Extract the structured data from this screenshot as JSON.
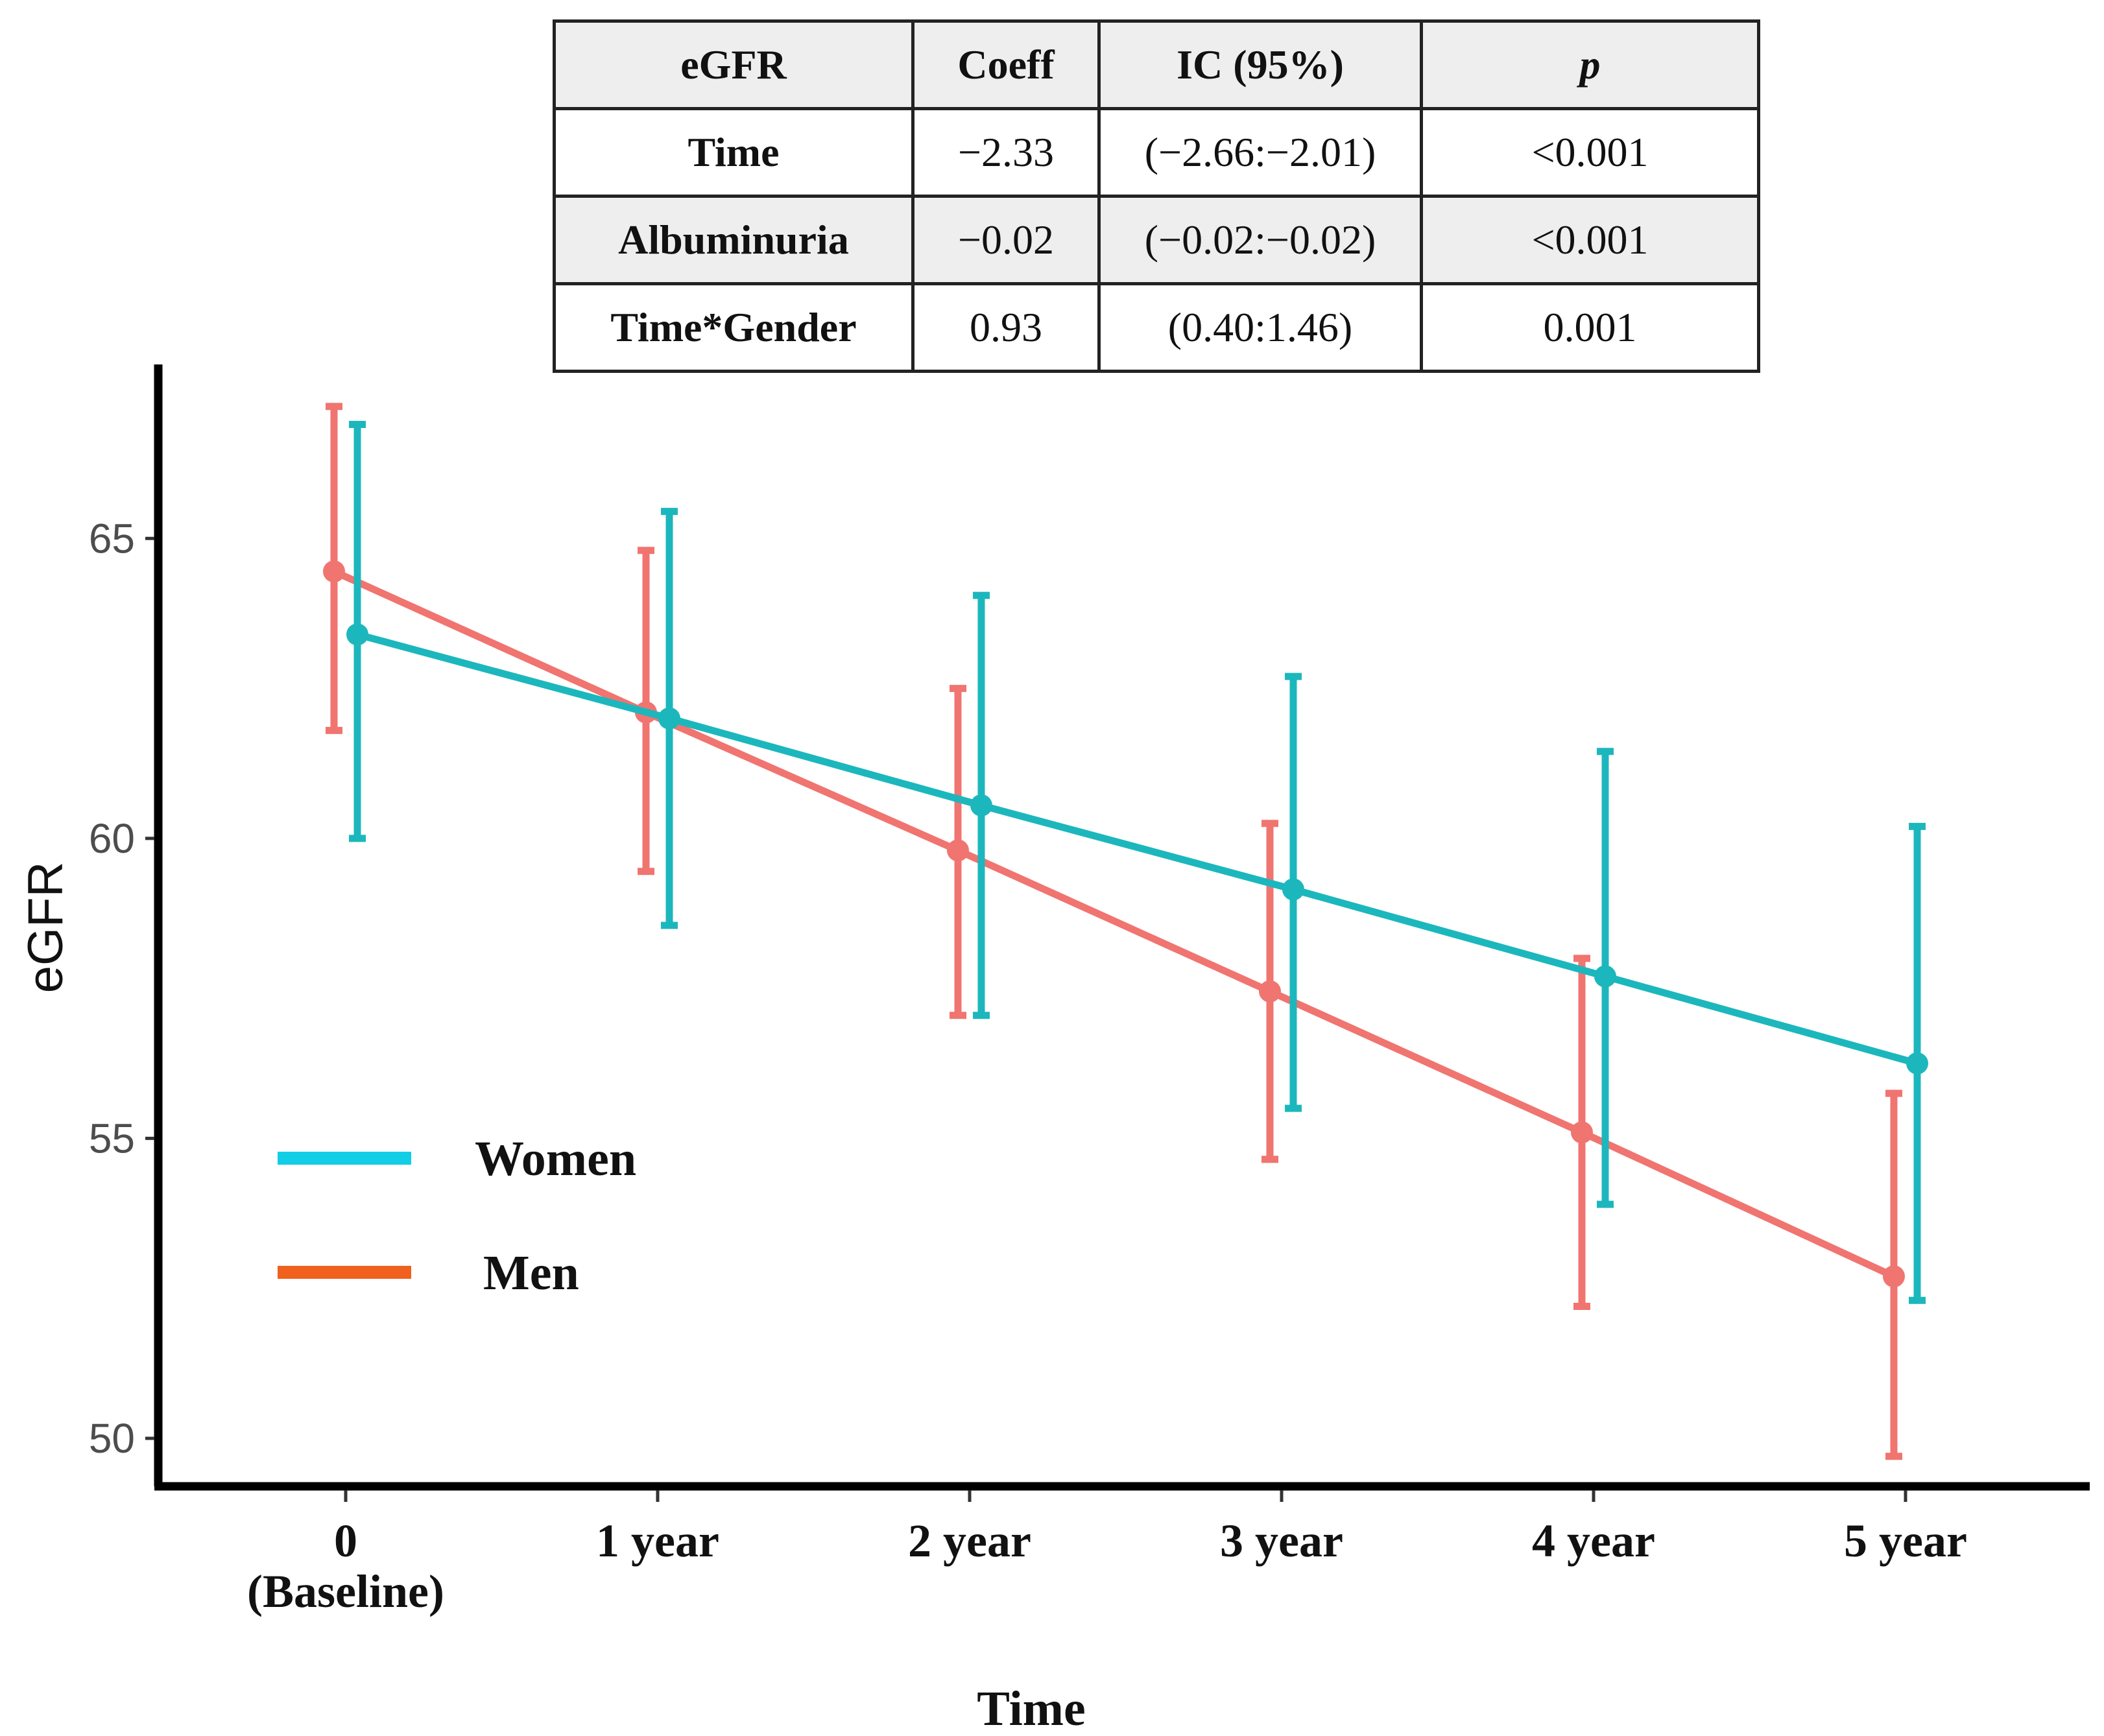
{
  "chart_data": {
    "type": "line",
    "title": "",
    "xlabel": "Time",
    "ylabel": "eGFR",
    "categories": [
      [
        "0",
        "(Baseline)"
      ],
      [
        "1 year"
      ],
      [
        "2 year"
      ],
      [
        "3 year"
      ],
      [
        "4 year"
      ],
      [
        "5 year"
      ]
    ],
    "y_ticks": [
      50,
      55,
      60,
      65
    ],
    "ylim": [
      49.2,
      67.9
    ],
    "legend_position": "bottom-left",
    "series": [
      {
        "name": "Women",
        "color": "#1cb7bd",
        "legend_color": "#12cde6",
        "values": [
          63.4,
          62.0,
          60.55,
          59.15,
          57.7,
          56.25
        ],
        "lower": [
          60.0,
          58.55,
          57.05,
          55.5,
          53.9,
          52.3
        ],
        "upper": [
          66.9,
          65.45,
          64.05,
          62.7,
          61.45,
          60.2
        ]
      },
      {
        "name": "Men",
        "color": "#f07470",
        "legend_color": "#f0601e",
        "values": [
          64.45,
          62.1,
          59.8,
          57.45,
          55.1,
          52.7
        ],
        "lower": [
          61.8,
          59.45,
          57.05,
          54.65,
          52.2,
          49.7
        ],
        "upper": [
          67.2,
          64.8,
          62.5,
          60.25,
          58.0,
          55.75
        ]
      }
    ]
  },
  "table": {
    "header": [
      "eGFR",
      "Coeff",
      "IC (95%)",
      "p"
    ],
    "rows": [
      [
        "Time",
        "−2.33",
        "(−2.66:−2.01)",
        "<0.001"
      ],
      [
        "Albuminuria",
        "−0.02",
        "(−0.02:−0.02)",
        "<0.001"
      ],
      [
        "Time*Gender",
        "0.93",
        "(0.40:1.46)",
        "0.001"
      ]
    ]
  }
}
